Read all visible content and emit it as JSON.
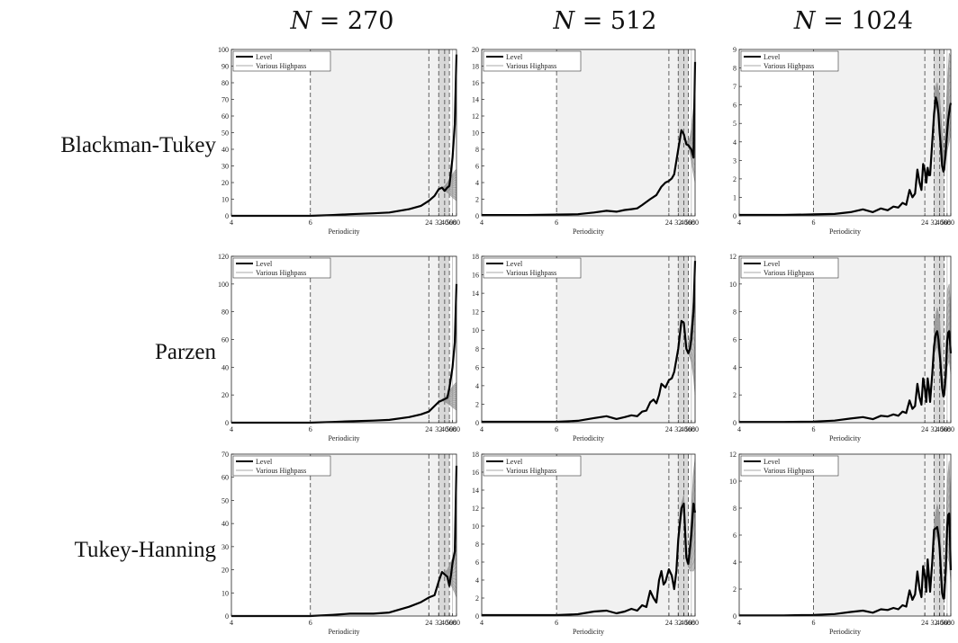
{
  "column_titles": [
    {
      "var": "N",
      "rest": " = 270"
    },
    {
      "var": "N",
      "rest": " = 512"
    },
    {
      "var": "N",
      "rest": " = 1024"
    }
  ],
  "row_labels": [
    "Blackman-Tukey",
    "Parzen",
    "Tukey-Hanning"
  ],
  "colors": {
    "level": "#000000",
    "highpass": "#8c8c8c",
    "light_band": "#f1f1f1",
    "dark_band": "#d8d8d8"
  },
  "chart_data": [
    {
      "type": "line",
      "x_scale": "reciprocal",
      "xlim": [
        4,
        80
      ],
      "ylim": [
        0,
        100
      ],
      "yticks": [
        0,
        10,
        20,
        30,
        40,
        50,
        60,
        70,
        80,
        90,
        100
      ],
      "xticks": [
        4,
        6,
        24,
        32,
        40,
        50,
        60,
        80
      ],
      "xlabel": "Periodicity",
      "legend": [
        "Level",
        "Various Highpass"
      ],
      "light_band": [
        6,
        32
      ],
      "dark_band": [
        32,
        50
      ],
      "dashed_lines": [
        6,
        24,
        32,
        40,
        50
      ],
      "solid_lines": [
        60
      ],
      "level": {
        "x": [
          4,
          5,
          6,
          7,
          8,
          10,
          12,
          16,
          20,
          24,
          28,
          32,
          36,
          40,
          45,
          50,
          60,
          70,
          80
        ],
        "y": [
          0,
          0,
          0,
          0.5,
          1,
          1.5,
          2,
          4,
          6,
          9,
          12,
          16,
          17,
          15,
          17,
          18,
          35,
          55,
          97
        ]
      },
      "highpass_band": {
        "x": [
          36,
          40,
          45,
          50,
          60,
          70,
          80
        ],
        "lower": [
          16,
          15,
          14,
          13,
          11,
          10,
          9
        ],
        "upper": [
          17,
          18,
          20,
          22,
          25,
          27,
          28
        ]
      }
    },
    {
      "type": "line",
      "x_scale": "reciprocal",
      "xlim": [
        4,
        80
      ],
      "ylim": [
        0,
        20
      ],
      "yticks": [
        0,
        2,
        4,
        6,
        8,
        10,
        12,
        14,
        16,
        18,
        20
      ],
      "xticks": [
        4,
        6,
        24,
        32,
        40,
        50,
        60,
        80
      ],
      "xlabel": "Periodicity",
      "legend": [
        "Level",
        "Various Highpass"
      ],
      "light_band": [
        6,
        32
      ],
      "dark_band": [
        32,
        50
      ],
      "dashed_lines": [
        6,
        24,
        32,
        40,
        50
      ],
      "solid_lines": [
        60
      ],
      "level": {
        "x": [
          4,
          5,
          6,
          7,
          8,
          9,
          10,
          11,
          12,
          13,
          14,
          16,
          18,
          20,
          22,
          24,
          26,
          28,
          32,
          36,
          40,
          45,
          50,
          55,
          60,
          70,
          80
        ],
        "y": [
          0.1,
          0.1,
          0.15,
          0.2,
          0.4,
          0.6,
          0.5,
          0.7,
          0.8,
          0.9,
          1.3,
          2,
          2.5,
          3.5,
          4,
          4.2,
          4.5,
          5,
          8,
          10.3,
          9.8,
          8.6,
          8.5,
          8.2,
          8,
          7,
          18.5
        ]
      },
      "highpass_band": {
        "x": [
          45,
          50,
          55,
          60,
          70,
          80
        ],
        "lower": [
          8.5,
          8.3,
          7.5,
          6.5,
          5,
          4
        ],
        "upper": [
          9,
          9,
          9.5,
          10.5,
          13,
          16.5
        ]
      }
    },
    {
      "type": "line",
      "x_scale": "reciprocal",
      "xlim": [
        4,
        80
      ],
      "ylim": [
        0,
        9
      ],
      "yticks": [
        0,
        1,
        2,
        3,
        4,
        5,
        6,
        7,
        8,
        9
      ],
      "xticks": [
        4,
        6,
        24,
        32,
        40,
        50,
        60,
        80
      ],
      "xlabel": "Periodicity",
      "legend": [
        "Level",
        "Various Highpass"
      ],
      "light_band": [
        6,
        32
      ],
      "dark_band": [
        32,
        50
      ],
      "dashed_lines": [
        6,
        24,
        32,
        40,
        50
      ],
      "solid_lines": [
        60
      ],
      "level": {
        "x": [
          4,
          5,
          6,
          7,
          8,
          9,
          10,
          11,
          12,
          13,
          14,
          15,
          16,
          17,
          18,
          19,
          20,
          21,
          22,
          23,
          24,
          25,
          26,
          27,
          28,
          30,
          32,
          34,
          36,
          38,
          40,
          42,
          45,
          48,
          50,
          55,
          60,
          65,
          70,
          75,
          80
        ],
        "y": [
          0.05,
          0.05,
          0.08,
          0.1,
          0.2,
          0.35,
          0.2,
          0.4,
          0.3,
          0.5,
          0.45,
          0.7,
          0.6,
          1.4,
          1.0,
          1.2,
          2.5,
          1.8,
          1.4,
          2.8,
          2.5,
          1.8,
          2.6,
          2.2,
          2.2,
          4,
          5.5,
          6.4,
          6.1,
          5.5,
          4.5,
          3.8,
          2.7,
          2.4,
          2.5,
          3.5,
          4.5,
          5.2,
          5.6,
          5.9,
          6.1
        ]
      },
      "highpass_band": {
        "x": [
          32,
          36,
          40,
          45,
          50,
          55,
          60,
          70,
          80
        ],
        "lower": [
          5.5,
          6,
          5.3,
          3.5,
          2.4,
          3,
          3.5,
          4,
          4.5
        ],
        "upper": [
          6.8,
          7.2,
          6.5,
          4.5,
          3,
          5,
          7,
          8.8,
          8.6
        ]
      }
    },
    {
      "type": "line",
      "x_scale": "reciprocal",
      "xlim": [
        4,
        80
      ],
      "ylim": [
        0,
        120
      ],
      "yticks": [
        0,
        20,
        40,
        60,
        80,
        100,
        120
      ],
      "xticks": [
        4,
        6,
        24,
        32,
        40,
        50,
        60,
        80
      ],
      "xlabel": "Periodicity",
      "legend": [
        "Level",
        "Various Highpass"
      ],
      "light_band": [
        6,
        32
      ],
      "dark_band": [
        32,
        50
      ],
      "dashed_lines": [
        6,
        24,
        32,
        40,
        50
      ],
      "solid_lines": [
        60
      ],
      "level": {
        "x": [
          4,
          5,
          6,
          7,
          8,
          10,
          12,
          16,
          20,
          24,
          28,
          32,
          36,
          40,
          45,
          50,
          60,
          70,
          80
        ],
        "y": [
          0,
          0,
          0,
          0.5,
          1,
          1.5,
          2,
          4,
          6,
          8,
          12,
          15,
          16,
          17,
          18,
          25,
          40,
          58,
          100
        ]
      },
      "highpass_band": {
        "x": [
          36,
          40,
          45,
          50,
          60,
          70,
          80
        ],
        "lower": [
          16,
          15,
          14,
          13,
          11,
          10,
          9
        ],
        "upper": [
          17,
          18,
          20,
          23,
          26,
          28,
          29
        ]
      }
    },
    {
      "type": "line",
      "x_scale": "reciprocal",
      "xlim": [
        4,
        80
      ],
      "ylim": [
        0,
        18
      ],
      "yticks": [
        0,
        2,
        4,
        6,
        8,
        10,
        12,
        14,
        16,
        18
      ],
      "xticks": [
        4,
        6,
        24,
        32,
        40,
        50,
        60,
        80
      ],
      "xlabel": "Periodicity",
      "legend": [
        "Level",
        "Various Highpass"
      ],
      "light_band": [
        6,
        32
      ],
      "dark_band": [
        32,
        50
      ],
      "dashed_lines": [
        6,
        24,
        32,
        40,
        50
      ],
      "solid_lines": [
        60
      ],
      "level": {
        "x": [
          4,
          5,
          6,
          7,
          8,
          9,
          10,
          11,
          12,
          13,
          14,
          15,
          16,
          17,
          18,
          19,
          20,
          22,
          24,
          26,
          28,
          32,
          36,
          40,
          45,
          50,
          55,
          60,
          70,
          80
        ],
        "y": [
          0.1,
          0.1,
          0.1,
          0.2,
          0.5,
          0.7,
          0.4,
          0.6,
          0.8,
          0.7,
          1.2,
          1.3,
          2.2,
          2.5,
          2.1,
          3,
          4.2,
          3.8,
          4.6,
          4.8,
          5.5,
          8,
          11,
          10.8,
          8,
          7.5,
          8,
          9,
          12,
          17.5
        ]
      },
      "highpass_band": {
        "x": [
          50,
          55,
          60,
          70,
          80
        ],
        "lower": [
          7.5,
          7,
          6.5,
          5,
          3
        ],
        "upper": [
          8.5,
          9.5,
          11,
          13.5,
          14.5
        ]
      }
    },
    {
      "type": "line",
      "x_scale": "reciprocal",
      "xlim": [
        4,
        80
      ],
      "ylim": [
        0,
        12
      ],
      "yticks": [
        0,
        2,
        4,
        6,
        8,
        10,
        12
      ],
      "xticks": [
        4,
        6,
        24,
        32,
        40,
        50,
        60,
        80
      ],
      "xlabel": "Periodicity",
      "legend": [
        "Level",
        "Various Highpass"
      ],
      "light_band": [
        6,
        32
      ],
      "dark_band": [
        32,
        50
      ],
      "dashed_lines": [
        6,
        24,
        32,
        40,
        50
      ],
      "solid_lines": [
        60
      ],
      "level": {
        "x": [
          4,
          5,
          6,
          7,
          8,
          9,
          10,
          11,
          12,
          13,
          14,
          15,
          16,
          17,
          18,
          19,
          20,
          21,
          22,
          23,
          24,
          25,
          26,
          27,
          28,
          30,
          32,
          34,
          36,
          38,
          40,
          42,
          45,
          48,
          50,
          55,
          60,
          65,
          70,
          75,
          80
        ],
        "y": [
          0.05,
          0.05,
          0.08,
          0.15,
          0.3,
          0.4,
          0.25,
          0.5,
          0.45,
          0.6,
          0.5,
          0.8,
          0.7,
          1.6,
          1.0,
          1.2,
          2.8,
          1.8,
          1.3,
          3.2,
          2.5,
          1.5,
          3.2,
          2.5,
          1.5,
          3.5,
          5.5,
          6.4,
          6.6,
          6,
          5,
          4,
          2.5,
          1.9,
          2.0,
          3.5,
          5.8,
          6.5,
          6.6,
          5.8,
          5.0
        ]
      },
      "highpass_band": {
        "x": [
          32,
          36,
          40,
          45,
          50,
          55,
          60,
          70,
          80
        ],
        "lower": [
          5,
          5.5,
          4.5,
          2.2,
          1.8,
          2.5,
          4,
          4.5,
          3.5
        ],
        "upper": [
          7,
          8.3,
          7.5,
          3.5,
          2.3,
          5,
          9.5,
          10,
          8
        ]
      }
    },
    {
      "type": "line",
      "x_scale": "reciprocal",
      "xlim": [
        4,
        80
      ],
      "ylim": [
        0,
        70
      ],
      "yticks": [
        0,
        10,
        20,
        30,
        40,
        50,
        60,
        70
      ],
      "xticks": [
        4,
        6,
        24,
        32,
        40,
        50,
        60,
        80
      ],
      "xlabel": "Periodicity",
      "legend": [
        "Level",
        "Various Highpass"
      ],
      "light_band": [
        6,
        32
      ],
      "dark_band": [
        32,
        50
      ],
      "dashed_lines": [
        6,
        24,
        32,
        40,
        50
      ],
      "solid_lines": [
        60
      ],
      "level": {
        "x": [
          4,
          5,
          6,
          7,
          8,
          10,
          12,
          16,
          20,
          24,
          28,
          32,
          36,
          40,
          45,
          50,
          55,
          60,
          70,
          80
        ],
        "y": [
          0,
          0,
          0,
          0.5,
          1,
          1,
          1.5,
          4,
          6,
          8,
          9,
          15,
          19,
          18,
          17,
          13,
          18,
          23,
          28,
          65
        ]
      },
      "highpass_band": {
        "x": [
          40,
          45,
          50,
          60,
          70,
          80
        ],
        "lower": [
          18,
          17,
          15,
          12,
          10,
          8
        ],
        "upper": [
          19,
          20,
          22,
          25,
          28,
          31
        ]
      }
    },
    {
      "type": "line",
      "x_scale": "reciprocal",
      "xlim": [
        4,
        80
      ],
      "ylim": [
        0,
        18
      ],
      "yticks": [
        0,
        2,
        4,
        6,
        8,
        10,
        12,
        14,
        16,
        18
      ],
      "xticks": [
        4,
        6,
        24,
        32,
        40,
        50,
        60,
        80
      ],
      "xlabel": "Periodicity",
      "legend": [
        "Level",
        "Various Highpass"
      ],
      "light_band": [
        6,
        32
      ],
      "dark_band": [
        32,
        50
      ],
      "dashed_lines": [
        6,
        24,
        32,
        40,
        50
      ],
      "solid_lines": [
        60
      ],
      "level": {
        "x": [
          4,
          5,
          6,
          7,
          8,
          9,
          10,
          11,
          12,
          13,
          14,
          15,
          16,
          17,
          18,
          19,
          20,
          21,
          22,
          24,
          26,
          28,
          30,
          32,
          36,
          40,
          45,
          50,
          55,
          60,
          70,
          80
        ],
        "y": [
          0.1,
          0.1,
          0.1,
          0.2,
          0.5,
          0.6,
          0.3,
          0.5,
          0.8,
          0.6,
          1.2,
          1.0,
          2.8,
          2.0,
          1.5,
          4.0,
          5.0,
          3.5,
          3.8,
          5.2,
          4.5,
          3.0,
          5.0,
          8.5,
          12,
          12.5,
          6.5,
          5.8,
          7.5,
          9,
          12.5,
          11.5
        ]
      },
      "highpass_band": {
        "x": [
          32,
          36,
          40,
          45,
          50,
          55,
          60,
          70,
          80
        ],
        "lower": [
          8,
          11,
          12,
          6,
          5.5,
          5,
          5,
          5,
          5.5
        ],
        "upper": [
          9,
          12.5,
          13.5,
          7,
          6.5,
          9,
          12,
          16,
          17.5
        ]
      }
    },
    {
      "type": "line",
      "x_scale": "reciprocal",
      "xlim": [
        4,
        80
      ],
      "ylim": [
        0,
        12
      ],
      "yticks": [
        0,
        2,
        4,
        6,
        8,
        10,
        12
      ],
      "xticks": [
        4,
        6,
        24,
        32,
        40,
        50,
        60,
        80
      ],
      "xlabel": "Periodicity",
      "legend": [
        "Level",
        "Various Highpass"
      ],
      "light_band": [
        6,
        32
      ],
      "dark_band": [
        32,
        50
      ],
      "dashed_lines": [
        6,
        24,
        32,
        40,
        50
      ],
      "solid_lines": [
        60
      ],
      "level": {
        "x": [
          4,
          5,
          6,
          7,
          8,
          9,
          10,
          11,
          12,
          13,
          14,
          15,
          16,
          17,
          18,
          19,
          20,
          21,
          22,
          23,
          24,
          25,
          26,
          27,
          28,
          30,
          32,
          34,
          36,
          38,
          40,
          42,
          45,
          48,
          50,
          55,
          60,
          65,
          70,
          75,
          80
        ],
        "y": [
          0.05,
          0.05,
          0.08,
          0.15,
          0.3,
          0.4,
          0.25,
          0.5,
          0.45,
          0.6,
          0.5,
          0.8,
          0.7,
          1.9,
          1.2,
          1.6,
          3.3,
          2.0,
          1.4,
          3.7,
          3.0,
          1.8,
          4.2,
          3.0,
          1.8,
          4.0,
          6.4,
          6.5,
          6.6,
          6.0,
          5.0,
          3.5,
          1.7,
          1.3,
          1.3,
          3.5,
          6.5,
          7.5,
          7.6,
          5.5,
          3.4
        ]
      },
      "highpass_band": {
        "x": [
          32,
          36,
          40,
          45,
          50,
          55,
          60,
          70,
          80
        ],
        "lower": [
          5.5,
          6,
          5,
          1.5,
          1.2,
          2.5,
          4.5,
          4,
          2.5
        ],
        "upper": [
          7,
          8.3,
          7.5,
          2.5,
          1.6,
          5,
          10,
          11.5,
          8
        ]
      }
    }
  ]
}
